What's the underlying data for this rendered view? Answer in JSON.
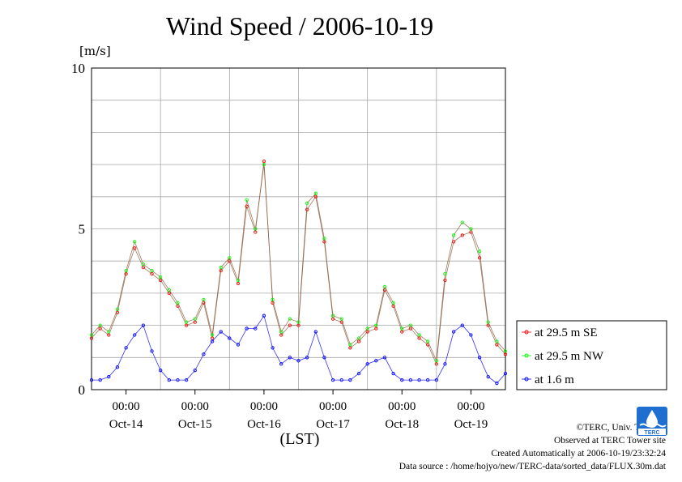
{
  "chart_data": {
    "type": "line",
    "title": "Wind Speed / 2006-10-19",
    "ylabel": "[m/s]",
    "xlabel": "(LST)",
    "ylim": [
      0,
      10
    ],
    "yticks": [
      "0",
      "5",
      "10"
    ],
    "xlim_hours": [
      0,
      144
    ],
    "xticks": [
      {
        "time": "00:00",
        "date": "Oct-14"
      },
      {
        "time": "00:00",
        "date": "Oct-15"
      },
      {
        "time": "00:00",
        "date": "Oct-16"
      },
      {
        "time": "00:00",
        "date": "Oct-17"
      },
      {
        "time": "00:00",
        "date": "Oct-18"
      },
      {
        "time": "00:00",
        "date": "Oct-19"
      }
    ],
    "grid": true,
    "legend_position": "right",
    "series": [
      {
        "name": "at 29.5 m SE",
        "color": "#ff0000",
        "x": [
          0,
          3,
          6,
          9,
          12,
          15,
          18,
          21,
          24,
          27,
          30,
          33,
          36,
          39,
          42,
          45,
          48,
          51,
          54,
          57,
          60,
          63,
          66,
          69,
          72,
          75,
          78,
          81,
          84,
          87,
          90,
          93,
          96,
          99,
          102,
          105,
          108,
          111,
          114,
          117,
          120,
          123,
          126,
          129,
          132,
          135,
          138,
          141,
          144
        ],
        "values": [
          1.6,
          1.9,
          1.7,
          2.4,
          3.6,
          4.4,
          3.8,
          3.6,
          3.4,
          3.0,
          2.6,
          2.0,
          2.1,
          2.7,
          1.6,
          3.7,
          4.0,
          3.3,
          5.7,
          4.9,
          7.1,
          2.7,
          1.7,
          2.0,
          2.0,
          5.6,
          6.0,
          4.6,
          2.2,
          2.1,
          1.3,
          1.5,
          1.8,
          1.9,
          3.1,
          2.6,
          1.8,
          1.9,
          1.6,
          1.4,
          0.8,
          3.4,
          4.6,
          4.8,
          4.9,
          4.1,
          2.0,
          1.4,
          1.1
        ]
      },
      {
        "name": "at 29.5 m NW",
        "color": "#00ff00",
        "x": [
          0,
          3,
          6,
          9,
          12,
          15,
          18,
          21,
          24,
          27,
          30,
          33,
          36,
          39,
          42,
          45,
          48,
          51,
          54,
          57,
          60,
          63,
          66,
          69,
          72,
          75,
          78,
          81,
          84,
          87,
          90,
          93,
          96,
          99,
          102,
          105,
          108,
          111,
          114,
          117,
          120,
          123,
          126,
          129,
          132,
          135,
          138,
          141,
          144
        ],
        "values": [
          1.7,
          2.0,
          1.8,
          2.5,
          3.7,
          4.6,
          3.9,
          3.7,
          3.5,
          3.1,
          2.7,
          2.1,
          2.2,
          2.8,
          1.7,
          3.8,
          4.1,
          3.4,
          5.9,
          5.0,
          7.0,
          2.8,
          1.8,
          2.2,
          2.1,
          5.8,
          6.1,
          4.7,
          2.3,
          2.2,
          1.4,
          1.6,
          1.9,
          2.0,
          3.2,
          2.7,
          1.9,
          2.0,
          1.7,
          1.5,
          0.9,
          3.6,
          4.8,
          5.2,
          5.0,
          4.3,
          2.1,
          1.5,
          1.2
        ]
      },
      {
        "name": "at 1.6 m",
        "color": "#0000ff",
        "x": [
          0,
          3,
          6,
          9,
          12,
          15,
          18,
          21,
          24,
          27,
          30,
          33,
          36,
          39,
          42,
          45,
          48,
          51,
          54,
          57,
          60,
          63,
          66,
          69,
          72,
          75,
          78,
          81,
          84,
          87,
          90,
          93,
          96,
          99,
          102,
          105,
          108,
          111,
          114,
          117,
          120,
          123,
          126,
          129,
          132,
          135,
          138,
          141,
          144
        ],
        "values": [
          0.3,
          0.3,
          0.4,
          0.7,
          1.3,
          1.7,
          2.0,
          1.2,
          0.6,
          0.3,
          0.3,
          0.3,
          0.6,
          1.1,
          1.5,
          1.8,
          1.6,
          1.4,
          1.9,
          1.9,
          2.3,
          1.3,
          0.8,
          1.0,
          0.9,
          1.0,
          1.8,
          1.0,
          0.3,
          0.3,
          0.3,
          0.5,
          0.8,
          0.9,
          1.0,
          0.5,
          0.3,
          0.3,
          0.3,
          0.3,
          0.3,
          0.8,
          1.8,
          2.0,
          1.7,
          1.0,
          0.4,
          0.2,
          0.5
        ]
      }
    ]
  },
  "credits": {
    "copyright": "©TERC, Univ. Tsukuba",
    "observed": "Observed at TERC Tower site",
    "created": "Created Automatically at 2006-10-19/23:32:24",
    "source": "Data source : /home/hojyo/new/TERC-data/sorted_data/FLUX.30m.dat"
  },
  "logo": {
    "text": "TERC",
    "color": "#1e6fd0"
  }
}
